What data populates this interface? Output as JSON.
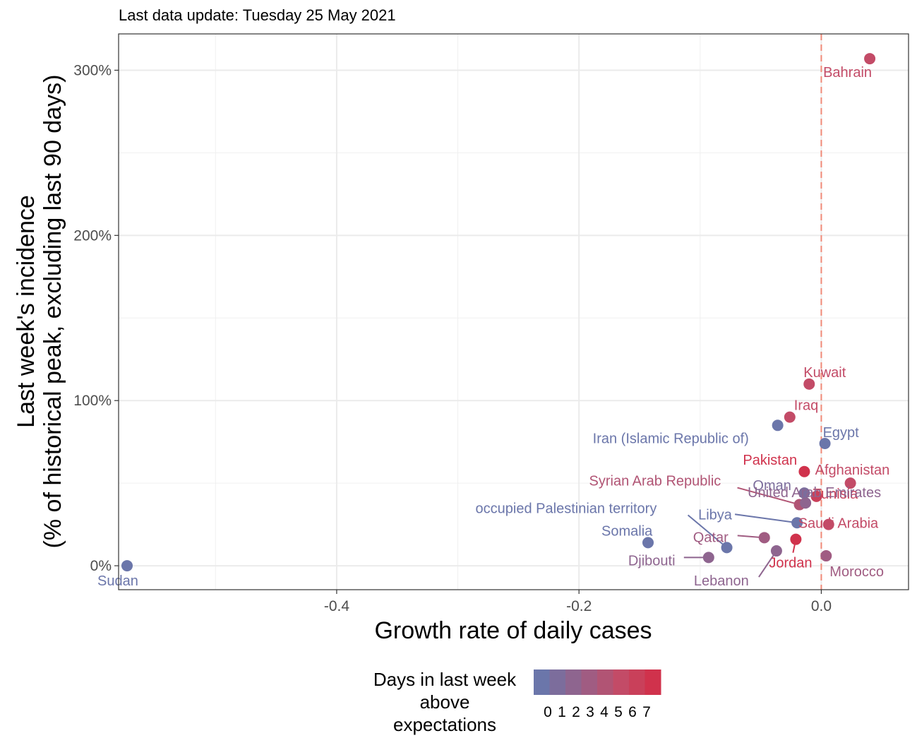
{
  "subtitle": "Last data update: Tuesday 25 May 2021",
  "chart_data": {
    "type": "scatter",
    "xlabel": "Growth rate of daily cases",
    "ylabel_line1": "Last week's incidence",
    "ylabel_line2": "(% of historical peak, excluding last 90 days)",
    "xlim": [
      -0.58,
      0.072
    ],
    "ylim": [
      -0.145,
      3.22
    ],
    "x_ticks": [
      {
        "value": -0.4,
        "label": "-0.4"
      },
      {
        "value": -0.2,
        "label": "-0.2"
      },
      {
        "value": 0.0,
        "label": "0.0"
      }
    ],
    "y_ticks": [
      {
        "value": 0,
        "label": "0%"
      },
      {
        "value": 1,
        "label": "100%"
      },
      {
        "value": 2,
        "label": "200%"
      },
      {
        "value": 3,
        "label": "300%"
      }
    ],
    "reference_line_x": 0,
    "grid": true,
    "legend": {
      "title_lines": [
        "Days in last week",
        "above",
        "expectations"
      ],
      "labels": [
        "0",
        "1",
        "2",
        "3",
        "4",
        "5",
        "6",
        "7"
      ],
      "colors": [
        "#6b76aa",
        "#7c6d9c",
        "#8e658f",
        "#a05c82",
        "#b15474",
        "#c34b67",
        "#c9405a",
        "#d0324c"
      ],
      "position": "bottom"
    },
    "points": [
      {
        "name": "Bahrain",
        "x": 0.04,
        "y": 3.07,
        "days": 5
      },
      {
        "name": "Kuwait",
        "x": -0.01,
        "y": 1.1,
        "days": 5
      },
      {
        "name": "Iraq",
        "x": -0.026,
        "y": 0.9,
        "days": 5
      },
      {
        "name": "Iran (Islamic Republic of)",
        "x": -0.036,
        "y": 0.85,
        "days": 0
      },
      {
        "name": "Egypt",
        "x": 0.003,
        "y": 0.74,
        "days": 0
      },
      {
        "name": "Pakistan",
        "x": -0.014,
        "y": 0.57,
        "days": 7
      },
      {
        "name": "Afghanistan",
        "x": 0.024,
        "y": 0.5,
        "days": 5
      },
      {
        "name": "Tunisia",
        "x": -0.004,
        "y": 0.42,
        "days": 6
      },
      {
        "name": "Oman",
        "x": -0.014,
        "y": 0.44,
        "days": 1
      },
      {
        "name": "Syrian Arab Republic",
        "x": -0.018,
        "y": 0.37,
        "days": 4
      },
      {
        "name": "occupied Palestinian territory",
        "x": -0.078,
        "y": 0.11,
        "days": 0
      },
      {
        "name": "Libya",
        "x": -0.02,
        "y": 0.26,
        "days": 0
      },
      {
        "name": "United Arab Emirates",
        "x": -0.013,
        "y": 0.38,
        "days": 2
      },
      {
        "name": "Somalia",
        "x": -0.143,
        "y": 0.14,
        "days": 0
      },
      {
        "name": "Qatar",
        "x": -0.047,
        "y": 0.17,
        "days": 3
      },
      {
        "name": "Saudi Arabia",
        "x": 0.006,
        "y": 0.25,
        "days": 5
      },
      {
        "name": "Jordan",
        "x": -0.021,
        "y": 0.16,
        "days": 7
      },
      {
        "name": "Djibouti",
        "x": -0.093,
        "y": 0.05,
        "days": 2
      },
      {
        "name": "Lebanon",
        "x": -0.037,
        "y": 0.09,
        "days": 2
      },
      {
        "name": "Morocco",
        "x": 0.004,
        "y": 0.06,
        "days": 3
      },
      {
        "name": "Sudan",
        "x": -0.573,
        "y": 0.0,
        "days": 0
      }
    ]
  }
}
